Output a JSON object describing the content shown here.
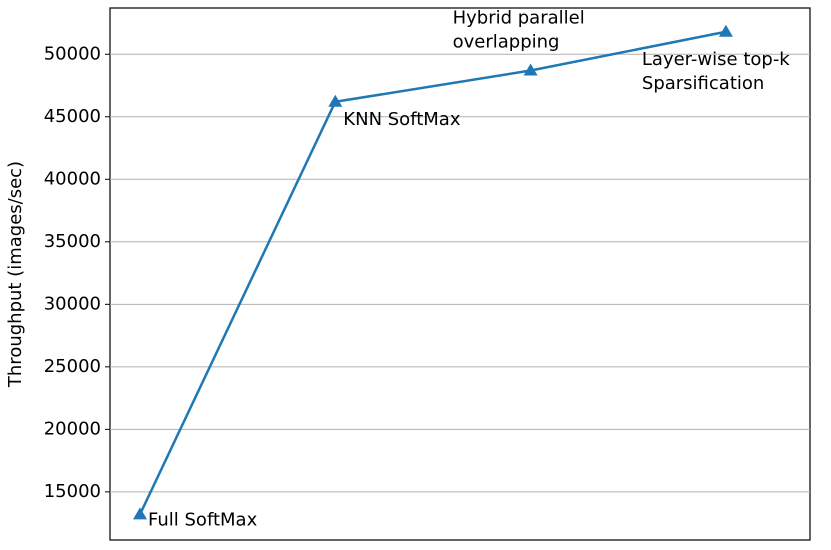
{
  "chart_data": {
    "type": "line",
    "y_label": "Throughput (images/sec)",
    "point_labels": [
      [
        "Full SoftMax"
      ],
      [
        "KNN SoftMax"
      ],
      [
        "Hybrid parallel",
        "overlapping"
      ],
      [
        "Layer-wise top-k",
        "Sparsification"
      ]
    ],
    "series": [
      {
        "color": "#1f77b4",
        "marker": "triangle",
        "values": [
          13200,
          46200,
          48700,
          51800
        ]
      }
    ],
    "ylim": [
      11150,
      53700
    ],
    "yticks": [
      15000,
      20000,
      25000,
      30000,
      35000,
      40000,
      45000,
      50000
    ],
    "grid": true
  }
}
